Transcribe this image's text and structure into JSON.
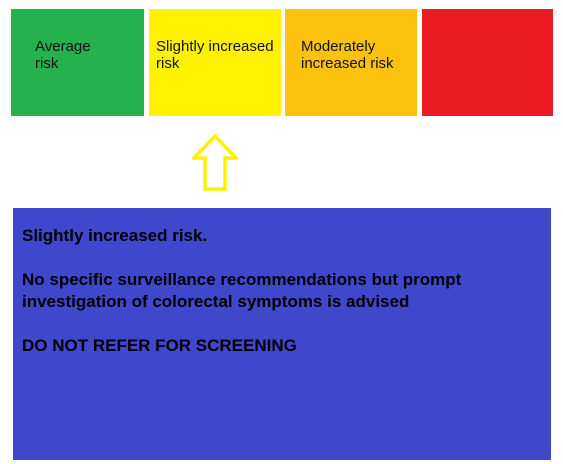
{
  "colors": {
    "average": "#25b14d",
    "slightly_increased": "#fff200",
    "moderately_increased": "#fcc20e",
    "high": "#ed1c24",
    "arrow": "#fff200",
    "panel": "#3f48cc"
  },
  "scale": {
    "average": "Average\nrisk",
    "slightly_increased": "Slightly increased\nrisk",
    "moderately_increased": "Moderately\nincreased risk",
    "high": ""
  },
  "indicator": {
    "icon": "up-arrow-icon",
    "selected": "slightly_increased"
  },
  "result": {
    "heading": "Slightly increased risk.",
    "recommendation": "No specific surveillance recommendations but prompt\ninvestigation of colorectal symptoms is advised",
    "instruction": "DO NOT REFER FOR SCREENING"
  }
}
